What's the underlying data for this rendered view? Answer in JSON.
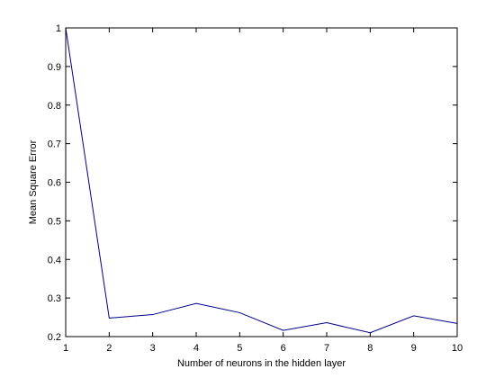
{
  "chart_data": {
    "type": "line",
    "title": "",
    "xlabel": "Number of neurons in the hidden layer",
    "ylabel": "Mean Square Error",
    "xlim": [
      1,
      10
    ],
    "ylim": [
      0.2,
      1
    ],
    "xticks": [
      1,
      2,
      3,
      4,
      5,
      6,
      7,
      8,
      9,
      10
    ],
    "yticks": [
      0.2,
      0.3,
      0.4,
      0.5,
      0.6,
      0.7,
      0.8,
      0.9,
      1
    ],
    "ytick_labels": [
      "0.2",
      "0.3",
      "0.4",
      "0.5",
      "0.6",
      "0.7",
      "0.8",
      "0.9",
      "1"
    ],
    "grid": false,
    "series": [
      {
        "x": [
          1,
          2,
          3,
          4,
          5,
          6,
          7,
          8,
          9,
          10
        ],
        "values": [
          1.0,
          0.248,
          0.257,
          0.286,
          0.262,
          0.216,
          0.236,
          0.21,
          0.254,
          0.234
        ]
      }
    ],
    "line_color": "#00008b",
    "axis_color": "#000000"
  }
}
